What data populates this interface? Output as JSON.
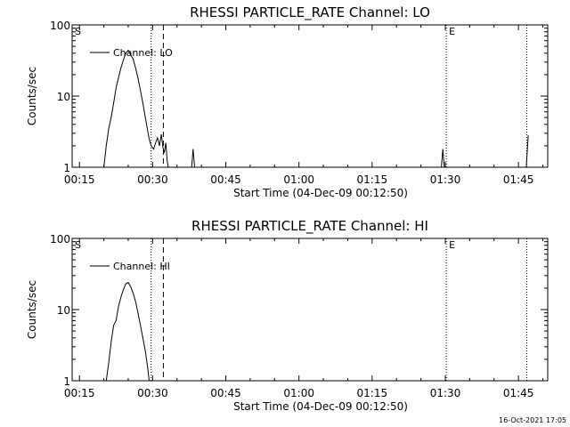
{
  "timestamp": "16-Oct-2021 17:05",
  "chart_data": [
    {
      "type": "line",
      "title": "RHESSI PARTICLE_RATE Channel: LO",
      "xlabel": "Start Time (04-Dec-09 00:12:50)",
      "ylabel": "Counts/sec",
      "y_scale": "log",
      "ylim": [
        1,
        100
      ],
      "xlim_minutes": [
        13.5,
        111.0
      ],
      "x_ticks": [
        {
          "t": 15,
          "label": "00:15"
        },
        {
          "t": 30,
          "label": "00:30"
        },
        {
          "t": 45,
          "label": "00:45"
        },
        {
          "t": 60,
          "label": "01:00"
        },
        {
          "t": 75,
          "label": "01:15"
        },
        {
          "t": 90,
          "label": "01:30"
        },
        {
          "t": 105,
          "label": "01:45"
        }
      ],
      "y_ticks": [
        {
          "v": 1,
          "label": "1"
        },
        {
          "v": 10,
          "label": "10"
        },
        {
          "v": 100,
          "label": "100"
        }
      ],
      "markers": [
        {
          "label": "S",
          "t": 13.5,
          "style": "dotted"
        },
        {
          "label": "",
          "t": 29.7,
          "style": "dotted"
        },
        {
          "label": "",
          "t": 32.2,
          "style": "dashed"
        },
        {
          "label": "E",
          "t": 90.2,
          "style": "dotted"
        },
        {
          "label": "",
          "t": 106.7,
          "style": "dotted"
        }
      ],
      "series": [
        {
          "name": "Channel: LO",
          "x": [
            20.0,
            20.5,
            21.0,
            21.5,
            22.0,
            22.5,
            23.0,
            23.5,
            24.0,
            24.5,
            25.0,
            25.5,
            26.0,
            26.5,
            27.0,
            27.5,
            28.0,
            28.5,
            29.0,
            29.3,
            29.7,
            30.2,
            30.6,
            31.0,
            31.4,
            31.8,
            32.1,
            32.4,
            32.7,
            33.0,
            33.2
          ],
          "y": [
            1,
            2,
            3.5,
            5,
            8,
            13,
            18,
            25,
            32,
            40,
            44,
            38,
            33,
            25,
            18,
            12,
            8,
            5,
            3.2,
            2.5,
            2.0,
            1.8,
            2.2,
            2.6,
            2.0,
            2.9,
            1.9,
            1.6,
            2.2,
            1.2,
            1
          ]
        },
        {
          "name": "",
          "x": [
            38.0,
            38.3,
            38.6
          ],
          "y": [
            1,
            1.8,
            1
          ]
        },
        {
          "name": "",
          "x": [
            89.2,
            89.5,
            89.8
          ],
          "y": [
            1,
            1.8,
            1
          ]
        },
        {
          "name": "",
          "x": [
            106.6,
            107.0
          ],
          "y": [
            1,
            2.8
          ]
        }
      ]
    },
    {
      "type": "line",
      "title": "RHESSI PARTICLE_RATE Channel: HI",
      "xlabel": "Start Time (04-Dec-09 00:12:50)",
      "ylabel": "Counts/sec",
      "y_scale": "log",
      "ylim": [
        1,
        100
      ],
      "xlim_minutes": [
        13.5,
        111.0
      ],
      "x_ticks": [
        {
          "t": 15,
          "label": "00:15"
        },
        {
          "t": 30,
          "label": "00:30"
        },
        {
          "t": 45,
          "label": "00:45"
        },
        {
          "t": 60,
          "label": "01:00"
        },
        {
          "t": 75,
          "label": "01:15"
        },
        {
          "t": 90,
          "label": "01:30"
        },
        {
          "t": 105,
          "label": "01:45"
        }
      ],
      "y_ticks": [
        {
          "v": 1,
          "label": "1"
        },
        {
          "v": 10,
          "label": "10"
        },
        {
          "v": 100,
          "label": "100"
        }
      ],
      "markers": [
        {
          "label": "S",
          "t": 13.5,
          "style": "dotted"
        },
        {
          "label": "",
          "t": 29.7,
          "style": "dotted"
        },
        {
          "label": "",
          "t": 32.2,
          "style": "dashed"
        },
        {
          "label": "E",
          "t": 90.2,
          "style": "dotted"
        },
        {
          "label": "",
          "t": 106.7,
          "style": "dotted"
        }
      ],
      "series": [
        {
          "name": "Channel: HI",
          "x": [
            20.5,
            21.0,
            21.5,
            22.0,
            22.5,
            23.0,
            23.5,
            24.0,
            24.5,
            25.0,
            25.5,
            26.0,
            26.5,
            27.0,
            27.5,
            28.0,
            28.5,
            29.0,
            29.3
          ],
          "y": [
            1,
            1.8,
            3.5,
            6,
            7,
            11,
            15,
            19,
            23,
            24,
            21,
            17,
            13,
            9,
            6,
            4,
            2.6,
            1.5,
            1
          ]
        }
      ]
    }
  ]
}
